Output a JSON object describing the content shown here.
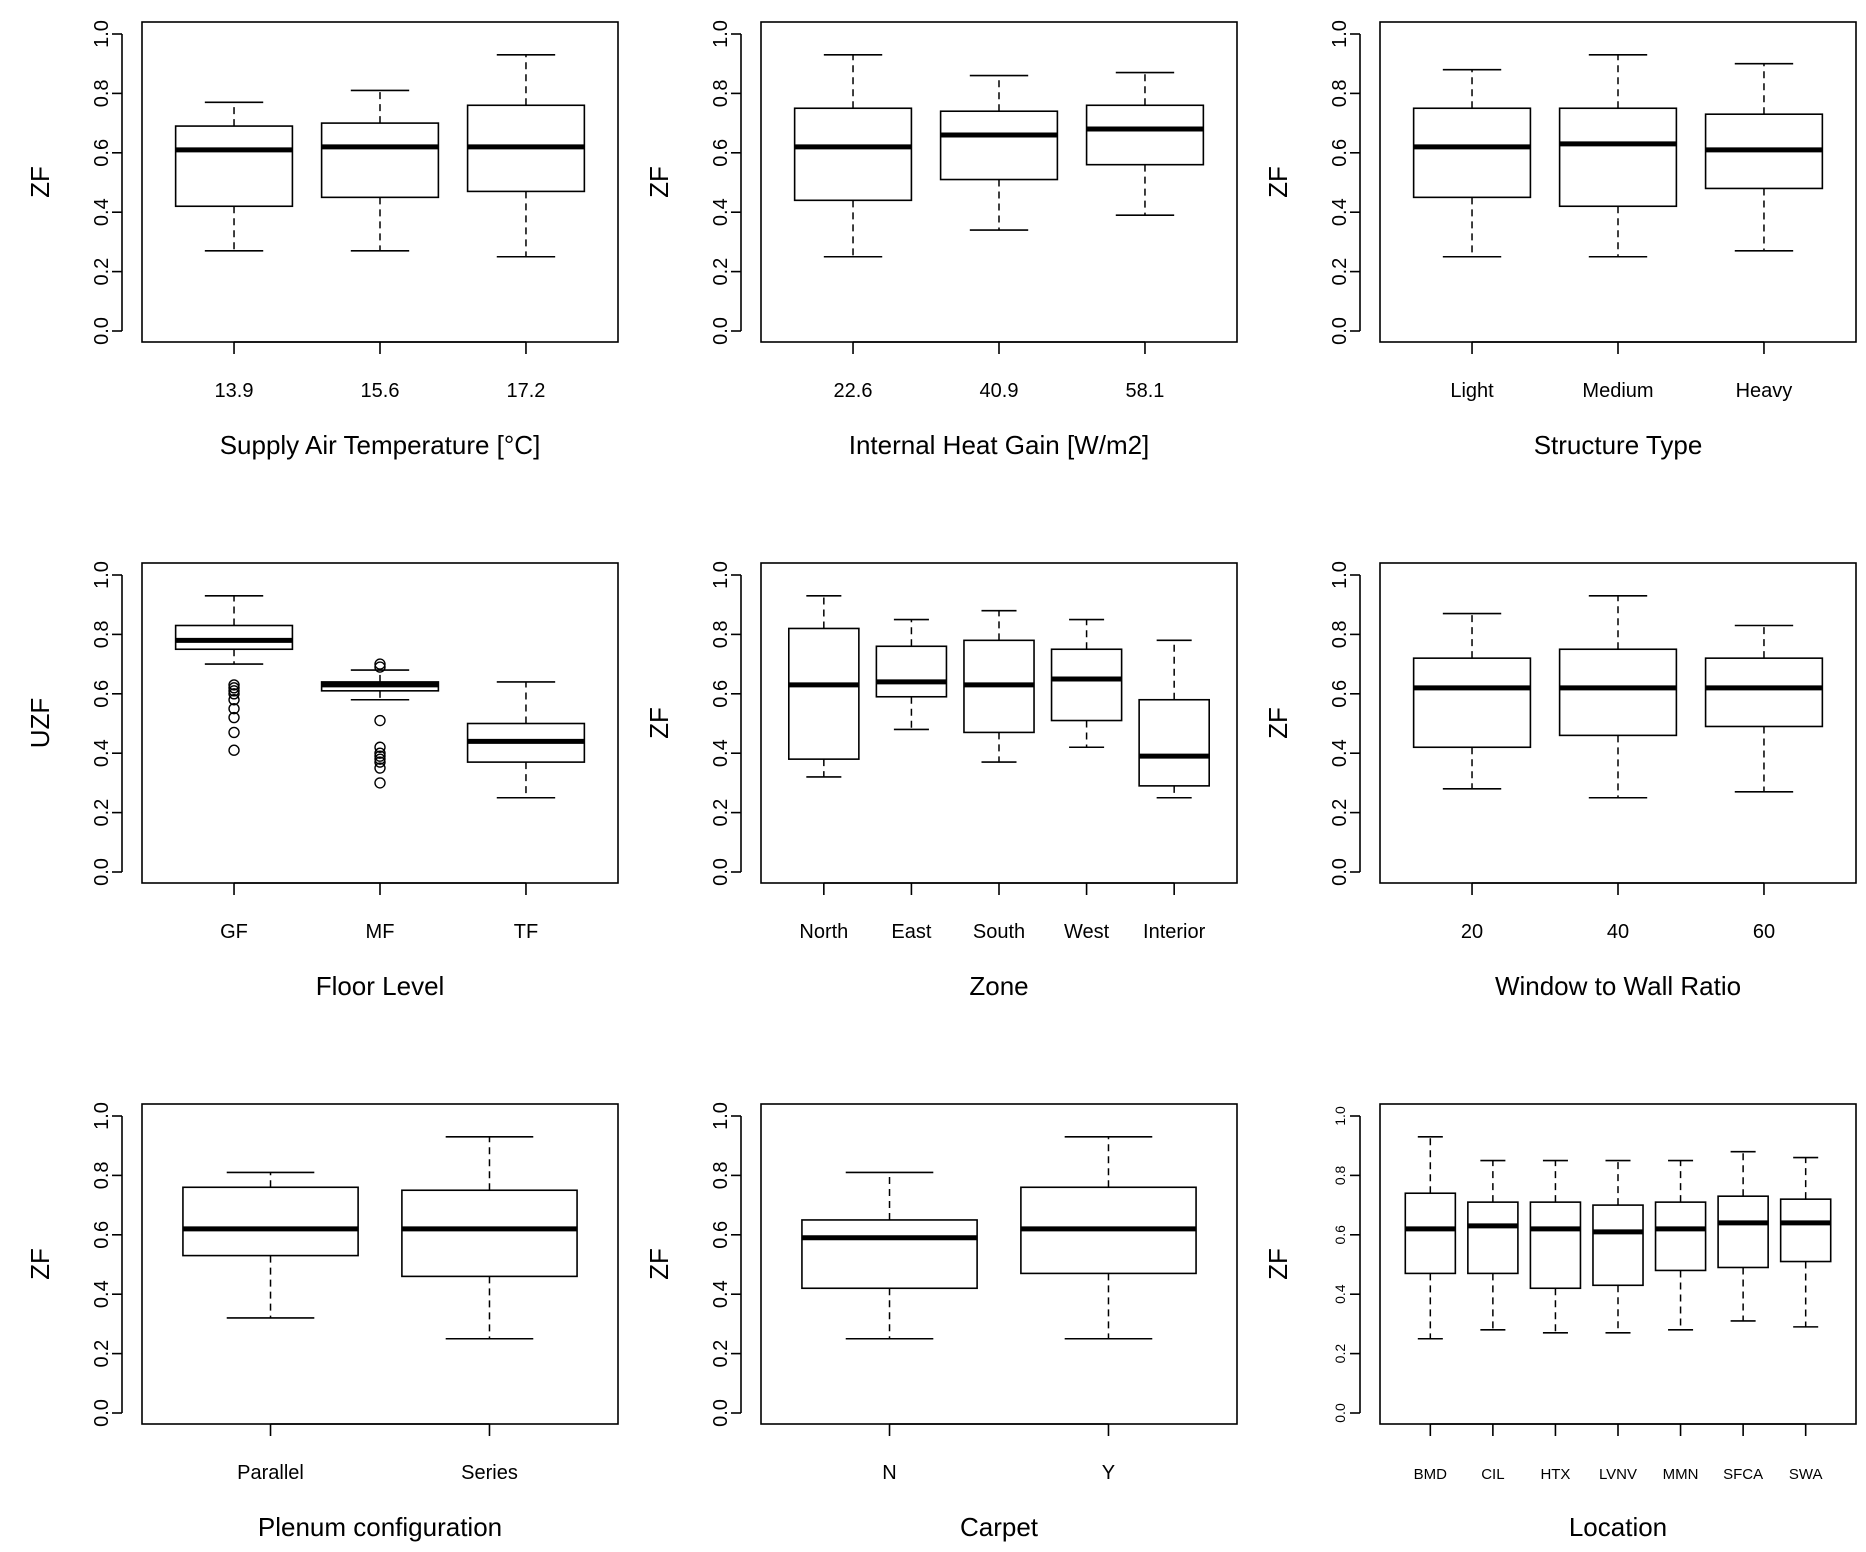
{
  "chart_data": [
    {
      "type": "boxplot",
      "ylabel": "ZF",
      "xlabel": "Supply Air Temperature [°C]",
      "ylim": [
        0,
        1
      ],
      "yticks": [
        "0.0",
        "0.2",
        "0.4",
        "0.6",
        "0.8",
        "1.0"
      ],
      "categories": [
        "13.9",
        "15.6",
        "17.2"
      ],
      "boxes": [
        {
          "min": 0.27,
          "q1": 0.42,
          "median": 0.61,
          "q3": 0.69,
          "max": 0.77,
          "outliers": []
        },
        {
          "min": 0.27,
          "q1": 0.45,
          "median": 0.62,
          "q3": 0.7,
          "max": 0.81,
          "outliers": []
        },
        {
          "min": 0.25,
          "q1": 0.47,
          "median": 0.62,
          "q3": 0.76,
          "max": 0.93,
          "outliers": []
        }
      ]
    },
    {
      "type": "boxplot",
      "ylabel": "ZF",
      "xlabel": "Internal Heat Gain [W/m2]",
      "ylim": [
        0,
        1
      ],
      "yticks": [
        "0.0",
        "0.2",
        "0.4",
        "0.6",
        "0.8",
        "1.0"
      ],
      "categories": [
        "22.6",
        "40.9",
        "58.1"
      ],
      "boxes": [
        {
          "min": 0.25,
          "q1": 0.44,
          "median": 0.62,
          "q3": 0.75,
          "max": 0.93,
          "outliers": []
        },
        {
          "min": 0.34,
          "q1": 0.51,
          "median": 0.66,
          "q3": 0.74,
          "max": 0.86,
          "outliers": []
        },
        {
          "min": 0.39,
          "q1": 0.56,
          "median": 0.68,
          "q3": 0.76,
          "max": 0.87,
          "outliers": []
        }
      ]
    },
    {
      "type": "boxplot",
      "ylabel": "ZF",
      "xlabel": "Structure Type",
      "ylim": [
        0,
        1
      ],
      "yticks": [
        "0.0",
        "0.2",
        "0.4",
        "0.6",
        "0.8",
        "1.0"
      ],
      "categories": [
        "Light",
        "Medium",
        "Heavy"
      ],
      "boxes": [
        {
          "min": 0.25,
          "q1": 0.45,
          "median": 0.62,
          "q3": 0.75,
          "max": 0.88,
          "outliers": []
        },
        {
          "min": 0.25,
          "q1": 0.42,
          "median": 0.63,
          "q3": 0.75,
          "max": 0.93,
          "outliers": []
        },
        {
          "min": 0.27,
          "q1": 0.48,
          "median": 0.61,
          "q3": 0.73,
          "max": 0.9,
          "outliers": []
        }
      ]
    },
    {
      "type": "boxplot",
      "ylabel": "UZF",
      "xlabel": "Floor Level",
      "ylim": [
        0,
        1
      ],
      "yticks": [
        "0.0",
        "0.2",
        "0.4",
        "0.6",
        "0.8",
        "1.0"
      ],
      "categories": [
        "GF",
        "MF",
        "TF"
      ],
      "boxes": [
        {
          "min": 0.7,
          "q1": 0.75,
          "median": 0.78,
          "q3": 0.83,
          "max": 0.93,
          "outliers": [
            0.63,
            0.62,
            0.61,
            0.6,
            0.58,
            0.55,
            0.52,
            0.47,
            0.41
          ]
        },
        {
          "min": 0.58,
          "q1": 0.61,
          "median": 0.63,
          "q3": 0.64,
          "max": 0.68,
          "outliers": [
            0.7,
            0.69,
            0.51,
            0.42,
            0.4,
            0.39,
            0.38,
            0.37,
            0.35,
            0.3
          ]
        },
        {
          "min": 0.25,
          "q1": 0.37,
          "median": 0.44,
          "q3": 0.5,
          "max": 0.64,
          "outliers": []
        }
      ]
    },
    {
      "type": "boxplot",
      "ylabel": "ZF",
      "xlabel": "Zone",
      "ylim": [
        0,
        1
      ],
      "yticks": [
        "0.0",
        "0.2",
        "0.4",
        "0.6",
        "0.8",
        "1.0"
      ],
      "categories": [
        "North",
        "East",
        "South",
        "West",
        "Interior"
      ],
      "boxes": [
        {
          "min": 0.32,
          "q1": 0.38,
          "median": 0.63,
          "q3": 0.82,
          "max": 0.93,
          "outliers": []
        },
        {
          "min": 0.48,
          "q1": 0.59,
          "median": 0.64,
          "q3": 0.76,
          "max": 0.85,
          "outliers": []
        },
        {
          "min": 0.37,
          "q1": 0.47,
          "median": 0.63,
          "q3": 0.78,
          "max": 0.88,
          "outliers": []
        },
        {
          "min": 0.42,
          "q1": 0.51,
          "median": 0.65,
          "q3": 0.75,
          "max": 0.85,
          "outliers": []
        },
        {
          "min": 0.25,
          "q1": 0.29,
          "median": 0.39,
          "q3": 0.58,
          "max": 0.78,
          "outliers": []
        }
      ]
    },
    {
      "type": "boxplot",
      "ylabel": "ZF",
      "xlabel": "Window to Wall Ratio",
      "ylim": [
        0,
        1
      ],
      "yticks": [
        "0.0",
        "0.2",
        "0.4",
        "0.6",
        "0.8",
        "1.0"
      ],
      "categories": [
        "20",
        "40",
        "60"
      ],
      "boxes": [
        {
          "min": 0.28,
          "q1": 0.42,
          "median": 0.62,
          "q3": 0.72,
          "max": 0.87,
          "outliers": []
        },
        {
          "min": 0.25,
          "q1": 0.46,
          "median": 0.62,
          "q3": 0.75,
          "max": 0.93,
          "outliers": []
        },
        {
          "min": 0.27,
          "q1": 0.49,
          "median": 0.62,
          "q3": 0.72,
          "max": 0.83,
          "outliers": []
        }
      ]
    },
    {
      "type": "boxplot",
      "ylabel": "ZF",
      "xlabel": "Plenum configuration",
      "ylim": [
        0,
        1
      ],
      "yticks": [
        "0.0",
        "0.2",
        "0.4",
        "0.6",
        "0.8",
        "1.0"
      ],
      "categories": [
        "Parallel",
        "Series"
      ],
      "boxes": [
        {
          "min": 0.32,
          "q1": 0.53,
          "median": 0.62,
          "q3": 0.76,
          "max": 0.81,
          "outliers": []
        },
        {
          "min": 0.25,
          "q1": 0.46,
          "median": 0.62,
          "q3": 0.75,
          "max": 0.93,
          "outliers": []
        }
      ]
    },
    {
      "type": "boxplot",
      "ylabel": "ZF",
      "xlabel": "Carpet",
      "ylim": [
        0,
        1
      ],
      "yticks": [
        "0.0",
        "0.2",
        "0.4",
        "0.6",
        "0.8",
        "1.0"
      ],
      "categories": [
        "N",
        "Y"
      ],
      "boxes": [
        {
          "min": 0.25,
          "q1": 0.42,
          "median": 0.59,
          "q3": 0.65,
          "max": 0.81,
          "outliers": []
        },
        {
          "min": 0.25,
          "q1": 0.47,
          "median": 0.62,
          "q3": 0.76,
          "max": 0.93,
          "outliers": []
        }
      ]
    },
    {
      "type": "boxplot",
      "ylabel": "ZF",
      "xlabel": "Location",
      "ylim": [
        0,
        1
      ],
      "yticks": [
        "0.0",
        "0.2",
        "0.4",
        "0.6",
        "0.8",
        "1.0"
      ],
      "categories": [
        "BMD",
        "CIL",
        "HTX",
        "LVNV",
        "MMN",
        "SFCA",
        "SWA"
      ],
      "boxes": [
        {
          "min": 0.25,
          "q1": 0.47,
          "median": 0.62,
          "q3": 0.74,
          "max": 0.93,
          "outliers": []
        },
        {
          "min": 0.28,
          "q1": 0.47,
          "median": 0.63,
          "q3": 0.71,
          "max": 0.85,
          "outliers": []
        },
        {
          "min": 0.27,
          "q1": 0.42,
          "median": 0.62,
          "q3": 0.71,
          "max": 0.85,
          "outliers": []
        },
        {
          "min": 0.27,
          "q1": 0.43,
          "median": 0.61,
          "q3": 0.7,
          "max": 0.85,
          "outliers": []
        },
        {
          "min": 0.28,
          "q1": 0.48,
          "median": 0.62,
          "q3": 0.71,
          "max": 0.85,
          "outliers": []
        },
        {
          "min": 0.31,
          "q1": 0.49,
          "median": 0.64,
          "q3": 0.73,
          "max": 0.88,
          "outliers": []
        },
        {
          "min": 0.29,
          "q1": 0.51,
          "median": 0.64,
          "q3": 0.72,
          "max": 0.86,
          "outliers": []
        }
      ]
    }
  ]
}
